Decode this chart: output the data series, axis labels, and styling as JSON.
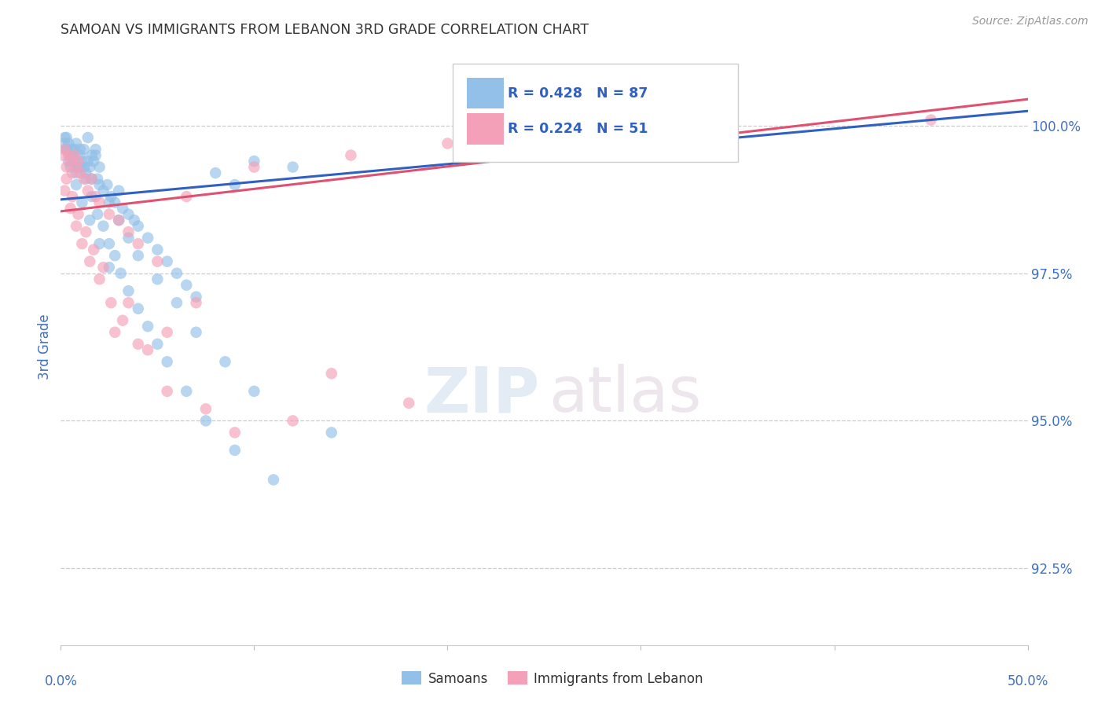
{
  "title": "SAMOAN VS IMMIGRANTS FROM LEBANON 3RD GRADE CORRELATION CHART",
  "source": "Source: ZipAtlas.com",
  "ylabel": "3rd Grade",
  "ytick_labels": [
    "92.5%",
    "95.0%",
    "97.5%",
    "100.0%"
  ],
  "ytick_values": [
    92.5,
    95.0,
    97.5,
    100.0
  ],
  "xmin": 0.0,
  "xmax": 50.0,
  "ymin": 91.2,
  "ymax": 101.3,
  "blue_color": "#92C0E8",
  "pink_color": "#F4A0B8",
  "blue_line_color": "#3060C0",
  "pink_line_color": "#E05070",
  "legend_text_color": "#3060C0",
  "axis_label_color": "#4070C0",
  "title_color": "#333333",
  "background_color": "#FFFFFF",
  "watermark_zip": "ZIP",
  "watermark_atlas": "atlas",
  "blue_line_x0": 0.0,
  "blue_line_y0": 98.75,
  "blue_line_x1": 50.0,
  "blue_line_y1": 100.25,
  "pink_line_x0": 0.0,
  "pink_line_y0": 98.55,
  "pink_line_x1": 50.0,
  "pink_line_y1": 100.45,
  "samoans_x": [
    0.2,
    0.3,
    0.4,
    0.5,
    0.6,
    0.7,
    0.8,
    0.9,
    1.0,
    1.1,
    1.2,
    1.3,
    1.4,
    1.5,
    1.6,
    1.7,
    1.8,
    1.9,
    2.0,
    2.2,
    2.4,
    2.6,
    2.8,
    3.0,
    3.2,
    3.5,
    3.8,
    4.0,
    4.5,
    5.0,
    5.5,
    6.0,
    6.5,
    7.0,
    8.0,
    9.0,
    10.0,
    12.0,
    0.3,
    0.5,
    0.7,
    1.0,
    1.3,
    1.6,
    1.9,
    2.2,
    2.5,
    2.8,
    3.1,
    3.5,
    4.0,
    4.5,
    5.0,
    5.5,
    6.5,
    7.5,
    9.0,
    11.0,
    0.2,
    0.4,
    0.6,
    0.8,
    1.0,
    1.2,
    1.4,
    1.6,
    1.8,
    2.0,
    2.5,
    3.0,
    3.5,
    4.0,
    5.0,
    6.0,
    7.0,
    8.5,
    10.0,
    14.0,
    0.3,
    0.5,
    0.8,
    1.1,
    1.5,
    2.0,
    2.5
  ],
  "samoans_y": [
    99.8,
    99.6,
    99.7,
    99.5,
    99.6,
    99.4,
    99.7,
    99.3,
    99.5,
    99.4,
    99.6,
    99.2,
    99.8,
    99.3,
    99.5,
    99.4,
    99.6,
    99.1,
    99.3,
    98.9,
    99.0,
    98.8,
    98.7,
    98.9,
    98.6,
    98.5,
    98.4,
    98.3,
    98.1,
    97.9,
    97.7,
    97.5,
    97.3,
    97.1,
    99.2,
    99.0,
    99.4,
    99.3,
    99.8,
    99.5,
    99.6,
    99.3,
    99.1,
    98.8,
    98.5,
    98.3,
    98.0,
    97.8,
    97.5,
    97.2,
    96.9,
    96.6,
    96.3,
    96.0,
    95.5,
    95.0,
    94.5,
    94.0,
    99.7,
    99.4,
    99.5,
    99.2,
    99.6,
    99.3,
    99.4,
    99.1,
    99.5,
    99.0,
    98.7,
    98.4,
    98.1,
    97.8,
    97.4,
    97.0,
    96.5,
    96.0,
    95.5,
    94.8,
    99.6,
    99.3,
    99.0,
    98.7,
    98.4,
    98.0,
    97.6
  ],
  "lebanon_x": [
    0.1,
    0.2,
    0.3,
    0.4,
    0.5,
    0.6,
    0.7,
    0.8,
    0.9,
    1.0,
    1.2,
    1.4,
    1.6,
    1.8,
    2.0,
    2.5,
    3.0,
    3.5,
    4.0,
    5.0,
    6.5,
    10.0,
    15.0,
    20.0,
    45.0,
    0.3,
    0.6,
    0.9,
    1.3,
    1.7,
    2.2,
    2.8,
    3.5,
    4.5,
    5.5,
    7.0,
    9.0,
    14.0,
    0.2,
    0.5,
    0.8,
    1.1,
    1.5,
    2.0,
    2.6,
    3.2,
    4.0,
    5.5,
    7.5,
    12.0,
    18.0
  ],
  "lebanon_y": [
    99.5,
    99.6,
    99.3,
    99.5,
    99.4,
    99.2,
    99.5,
    99.3,
    99.4,
    99.2,
    99.1,
    98.9,
    99.1,
    98.8,
    98.7,
    98.5,
    98.4,
    98.2,
    98.0,
    97.7,
    98.8,
    99.3,
    99.5,
    99.7,
    100.1,
    99.1,
    98.8,
    98.5,
    98.2,
    97.9,
    97.6,
    96.5,
    97.0,
    96.2,
    96.5,
    97.0,
    94.8,
    95.8,
    98.9,
    98.6,
    98.3,
    98.0,
    97.7,
    97.4,
    97.0,
    96.7,
    96.3,
    95.5,
    95.2,
    95.0,
    95.3
  ]
}
